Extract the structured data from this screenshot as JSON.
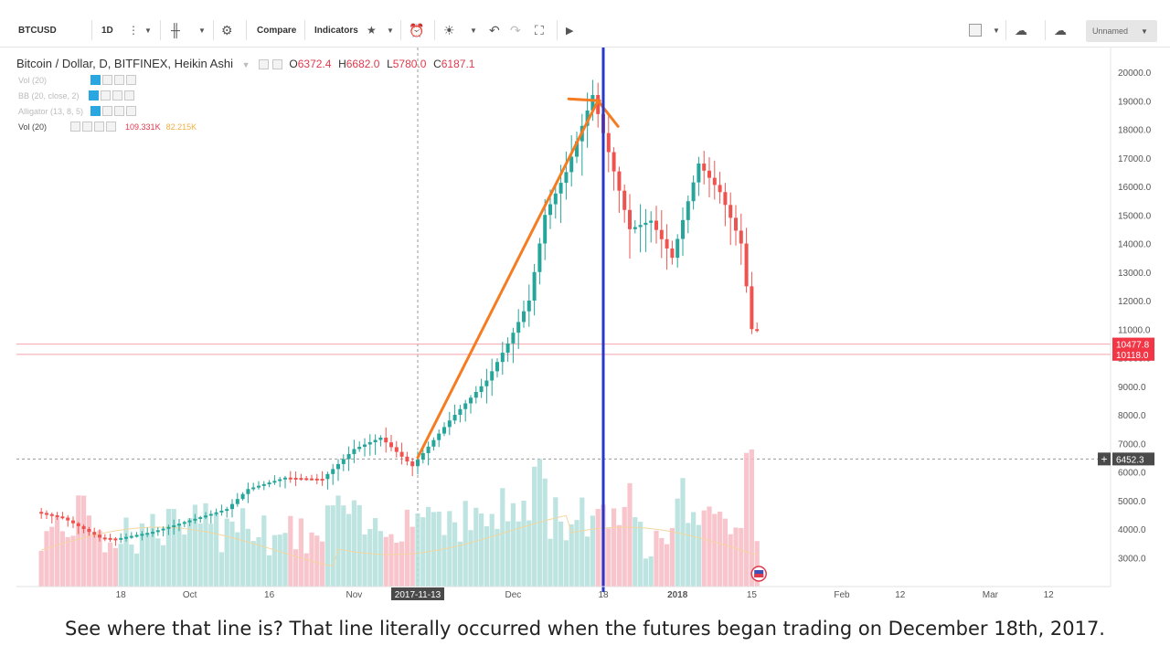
{
  "toolbar": {
    "symbol": "BTCUSD",
    "interval": "1D",
    "compare_label": "Compare",
    "indicators_label": "Indicators",
    "layout_name": "Unnamed"
  },
  "legend": {
    "title": "Bitcoin / Dollar, D, BITFINEX, Heikin Ashi",
    "open_label": "O",
    "open": "6372.4",
    "high_label": "H",
    "high": "6682.0",
    "low_label": "L",
    "low": "5780.0",
    "close_label": "C",
    "close": "6187.1",
    "rows": [
      {
        "label": "Vol (20)"
      },
      {
        "label": "BB (20, close, 2)"
      },
      {
        "label": "Alligator (13, 8, 5)"
      }
    ],
    "vol_label": "Vol (20)",
    "vol_value": "109.331K",
    "vol_ma": "82.215K"
  },
  "chart_data": {
    "type": "candlestick",
    "title": "Bitcoin / Dollar, D, BITFINEX, Heikin Ashi",
    "y_axis_ticks": [
      "3000.0",
      "4000.0",
      "5000.0",
      "6000.0",
      "7000.0",
      "8000.0",
      "9000.0",
      "10000.0",
      "11000.0",
      "12000.0",
      "13000.0",
      "14000.0",
      "15000.0",
      "16000.0",
      "17000.0",
      "18000.0",
      "19000.0",
      "20000.0"
    ],
    "x_axis_labels": [
      "18",
      "Oct",
      "16",
      "Nov",
      "Dec",
      "18",
      "2018",
      "15",
      "Feb",
      "12",
      "Mar",
      "12"
    ],
    "x_label_highlight": "2017-11-13",
    "price_labels": [
      {
        "value": 10477.8,
        "text": "10477.8",
        "color": "#f23645"
      },
      {
        "value": 10118.0,
        "text": "10118.0",
        "color": "#f23645"
      },
      {
        "value": 6452.3,
        "text": "6452.3",
        "color": "#4a4a4a"
      }
    ],
    "ylim": [
      2000,
      20500
    ],
    "series_price_path": [
      [
        "2017-09-03",
        4600
      ],
      [
        "2017-09-08",
        4400
      ],
      [
        "2017-09-15",
        3700
      ],
      [
        "2017-09-18",
        3650
      ],
      [
        "2017-09-25",
        3900
      ],
      [
        "2017-10-02",
        4300
      ],
      [
        "2017-10-09",
        4700
      ],
      [
        "2017-10-13",
        5400
      ],
      [
        "2017-10-20",
        5800
      ],
      [
        "2017-10-27",
        5750
      ],
      [
        "2017-11-02",
        6800
      ],
      [
        "2017-11-07",
        7200
      ],
      [
        "2017-11-13",
        6200
      ],
      [
        "2017-11-20",
        7800
      ],
      [
        "2017-11-27",
        9200
      ],
      [
        "2017-12-01",
        10500
      ],
      [
        "2017-12-05",
        12000
      ],
      [
        "2017-12-08",
        15000
      ],
      [
        "2017-12-12",
        16500
      ],
      [
        "2017-12-17",
        19200
      ],
      [
        "2017-12-20",
        17200
      ],
      [
        "2017-12-24",
        14500
      ],
      [
        "2017-12-28",
        14800
      ],
      [
        "2018-01-01",
        13500
      ],
      [
        "2018-01-06",
        16800
      ],
      [
        "2018-01-10",
        15800
      ],
      [
        "2018-01-14",
        14000
      ],
      [
        "2018-01-16",
        11000
      ]
    ],
    "annotations": [
      {
        "type": "trend_line",
        "color": "#f57c20",
        "from": [
          "2017-11-13",
          6500
        ],
        "to": [
          "2017-12-17",
          19000
        ]
      },
      {
        "type": "vertical_line",
        "color": "#2a38c8",
        "at": "2017-12-18"
      }
    ],
    "caption": "See where that line is? That line literally occurred when the futures began trading on December 18th, 2017."
  },
  "colors": {
    "up": "#26a69a",
    "down": "#ef5350",
    "trend_line": "#f57c20",
    "vertical_line": "#2a38c8"
  }
}
